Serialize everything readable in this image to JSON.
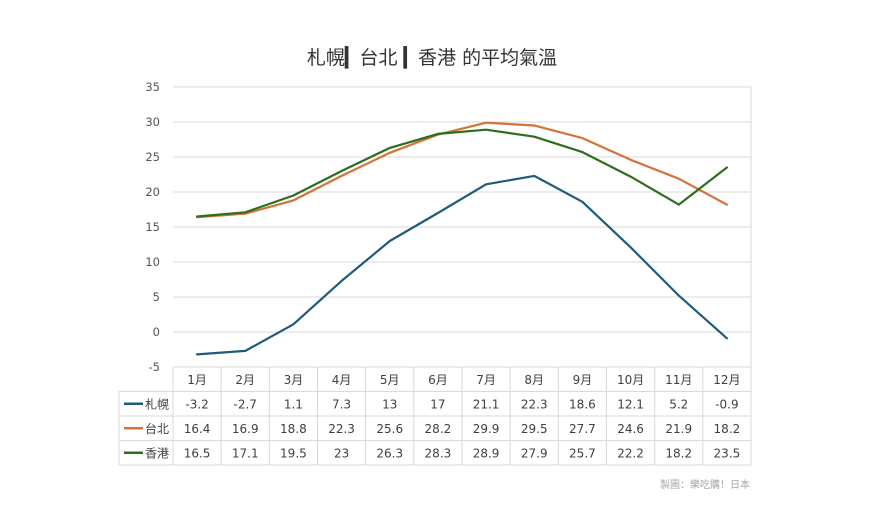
{
  "chart_data": {
    "type": "line",
    "title": "札幌▎台北 ▎香港 的平均氣溫",
    "categories": [
      "1月",
      "2月",
      "3月",
      "4月",
      "5月",
      "6月",
      "7月",
      "8月",
      "9月",
      "10月",
      "11月",
      "12月"
    ],
    "series": [
      {
        "name": "札幌",
        "color": "#1f5b7a",
        "values": [
          -3.2,
          -2.7,
          1.1,
          7.3,
          13,
          17,
          21.1,
          22.3,
          18.6,
          12.1,
          5.2,
          -0.9
        ],
        "labels": [
          "-3.2",
          "-2.7",
          "1.1",
          "7.3",
          "13",
          "17",
          "21.1",
          "22.3",
          "18.6",
          "12.1",
          "5.2",
          "-0.9"
        ]
      },
      {
        "name": "台北",
        "color": "#d2733a",
        "values": [
          16.4,
          16.9,
          18.8,
          22.3,
          25.6,
          28.2,
          29.9,
          29.5,
          27.7,
          24.6,
          21.9,
          18.2
        ],
        "labels": [
          "16.4",
          "16.9",
          "18.8",
          "22.3",
          "25.6",
          "28.2",
          "29.9",
          "29.5",
          "27.7",
          "24.6",
          "21.9",
          "18.2"
        ]
      },
      {
        "name": "香港",
        "color": "#2c6e1c",
        "values": [
          16.5,
          17.1,
          19.5,
          23,
          26.3,
          28.3,
          28.9,
          27.9,
          25.7,
          22.2,
          18.2,
          23.5
        ],
        "labels": [
          "16.5",
          "17.1",
          "19.5",
          "23",
          "26.3",
          "28.3",
          "28.9",
          "27.9",
          "25.7",
          "22.2",
          "18.2",
          "23.5"
        ]
      }
    ],
    "ylim": [
      -5,
      35
    ],
    "yticks": [
      "-5",
      "0",
      "5",
      "10",
      "15",
      "20",
      "25",
      "30",
      "35"
    ],
    "grid": true,
    "legend": "data-table",
    "credit": "製圖：樂吃購！日本"
  }
}
